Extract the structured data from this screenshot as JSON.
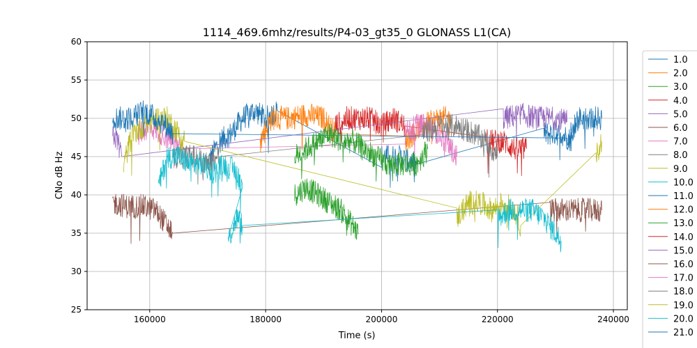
{
  "chart_data": {
    "type": "line",
    "title": "1114_469.6mhz/results/P4-03_gt35_0 GLONASS L1(CA)",
    "xlabel": "Time (s)",
    "ylabel": "CNo dB Hz",
    "xlim": [
      149200,
      242400
    ],
    "ylim": [
      25,
      60
    ],
    "xticks": [
      160000,
      180000,
      200000,
      220000,
      240000
    ],
    "yticks": [
      25,
      30,
      35,
      40,
      45,
      50,
      55,
      60
    ],
    "grid": true,
    "legend_position": "right-outside",
    "palette": [
      "#1f77b4",
      "#ff7f0e",
      "#2ca02c",
      "#d62728",
      "#9467bd",
      "#8c564b",
      "#e377c2",
      "#7f7f7f",
      "#bcbd22",
      "#17becf"
    ],
    "series": [
      {
        "name": "1.0",
        "points": [
          [
            170000,
            44
          ],
          [
            172000,
            47
          ],
          [
            174000,
            48
          ],
          [
            176000,
            50
          ],
          [
            178000,
            51
          ],
          [
            180000,
            50
          ],
          [
            182000,
            51
          ],
          [
            200000,
            45
          ],
          [
            203000,
            45
          ],
          [
            206000,
            44
          ],
          [
            228000,
            48
          ],
          [
            231000,
            48
          ],
          [
            233000,
            47
          ]
        ]
      },
      {
        "name": "2.0",
        "points": [
          [
            179000,
            47
          ],
          [
            181000,
            50
          ],
          [
            184000,
            50
          ],
          [
            187000,
            50.5
          ],
          [
            190000,
            50
          ],
          [
            192000,
            48
          ],
          [
            204000,
            47
          ],
          [
            207000,
            49
          ],
          [
            210000,
            50
          ],
          [
            212000,
            50
          ]
        ]
      },
      {
        "name": "3.0",
        "points": [
          [
            185000,
            40
          ],
          [
            187000,
            41
          ],
          [
            189000,
            40
          ],
          [
            191000,
            39
          ],
          [
            193000,
            38
          ],
          [
            195000,
            36
          ],
          [
            196000,
            35
          ]
        ]
      },
      {
        "name": "4.0",
        "points": [
          [
            192000,
            49
          ],
          [
            194000,
            50
          ],
          [
            196000,
            50
          ],
          [
            198000,
            50
          ],
          [
            200000,
            49
          ],
          [
            202000,
            50
          ],
          [
            204000,
            49
          ],
          [
            218000,
            47
          ],
          [
            221000,
            47
          ],
          [
            223000,
            46
          ],
          [
            225000,
            46
          ]
        ]
      },
      {
        "name": "5.0",
        "points": [
          [
            153600,
            48
          ],
          [
            154500,
            47
          ],
          [
            155200,
            45
          ],
          [
            221000,
            50
          ],
          [
            224000,
            50.5
          ],
          [
            227000,
            50
          ],
          [
            230000,
            50
          ],
          [
            232000,
            49.5
          ]
        ]
      },
      {
        "name": "6.0",
        "points": [
          [
            153600,
            39
          ],
          [
            156000,
            38.5
          ],
          [
            159000,
            38.5
          ],
          [
            161000,
            38
          ],
          [
            163000,
            36
          ],
          [
            164000,
            35
          ],
          [
            229000,
            38
          ],
          [
            231000,
            38
          ],
          [
            234000,
            38
          ],
          [
            237000,
            38
          ],
          [
            238000,
            38
          ]
        ]
      },
      {
        "name": "7.0",
        "points": [
          [
            158000,
            48
          ],
          [
            160000,
            49
          ],
          [
            162000,
            48
          ],
          [
            164000,
            47
          ],
          [
            166000,
            46
          ],
          [
            204000,
            48
          ],
          [
            206000,
            49
          ],
          [
            208000,
            49
          ],
          [
            210000,
            48
          ],
          [
            212000,
            46
          ],
          [
            213000,
            45
          ]
        ]
      },
      {
        "name": "8.0",
        "points": [
          [
            164000,
            45
          ],
          [
            166000,
            45
          ],
          [
            168000,
            45
          ],
          [
            170000,
            44
          ],
          [
            172000,
            45
          ],
          [
            207000,
            48
          ],
          [
            210000,
            49
          ],
          [
            213000,
            49
          ],
          [
            216000,
            48
          ],
          [
            218000,
            47
          ],
          [
            220000,
            45
          ]
        ]
      },
      {
        "name": "9.0",
        "points": [
          [
            155500,
            44
          ],
          [
            157000,
            48
          ],
          [
            159000,
            49
          ],
          [
            161000,
            50
          ],
          [
            163000,
            50
          ],
          [
            165000,
            48
          ],
          [
            166000,
            47
          ],
          [
            213000,
            37
          ],
          [
            215000,
            39
          ],
          [
            217000,
            39
          ],
          [
            219000,
            38
          ],
          [
            221000,
            39
          ],
          [
            223000,
            38
          ],
          [
            224000,
            36
          ],
          [
            237000,
            45
          ],
          [
            238000,
            47
          ]
        ]
      },
      {
        "name": "10.0",
        "points": [
          [
            161500,
            41
          ],
          [
            163000,
            45
          ],
          [
            165000,
            45
          ],
          [
            167000,
            44
          ],
          [
            169000,
            44
          ],
          [
            171000,
            43
          ],
          [
            173000,
            44
          ],
          [
            175000,
            43
          ],
          [
            176000,
            41
          ],
          [
            173500,
            34
          ],
          [
            175000,
            37
          ],
          [
            176000,
            36
          ],
          [
            220000,
            37
          ],
          [
            222000,
            38
          ],
          [
            224000,
            38
          ],
          [
            226000,
            38
          ],
          [
            228000,
            37
          ],
          [
            230000,
            35
          ],
          [
            231000,
            34
          ]
        ]
      },
      {
        "name": "11.0",
        "points": [
          [
            153600,
            50
          ],
          [
            155000,
            50
          ],
          [
            157000,
            50
          ],
          [
            159000,
            51
          ],
          [
            161000,
            50
          ],
          [
            163000,
            49
          ],
          [
            164000,
            48
          ],
          [
            232000,
            47
          ],
          [
            234000,
            50
          ],
          [
            236000,
            50
          ],
          [
            238000,
            50
          ]
        ]
      },
      {
        "name": "12.0",
        "points": []
      },
      {
        "name": "13.0",
        "points": [
          [
            185000,
            45
          ],
          [
            187000,
            46
          ],
          [
            189000,
            47
          ],
          [
            191000,
            48
          ],
          [
            193000,
            47
          ],
          [
            195000,
            47
          ],
          [
            197000,
            46
          ],
          [
            199000,
            45
          ],
          [
            201000,
            44
          ],
          [
            206000,
            44
          ],
          [
            208000,
            46
          ]
        ]
      },
      {
        "name": "14.0",
        "points": []
      },
      {
        "name": "15.0",
        "points": []
      },
      {
        "name": "16.0",
        "points": []
      },
      {
        "name": "17.0",
        "points": []
      },
      {
        "name": "18.0",
        "points": []
      },
      {
        "name": "19.0",
        "points": []
      },
      {
        "name": "20.0",
        "points": []
      },
      {
        "name": "21.0",
        "points": []
      }
    ]
  }
}
